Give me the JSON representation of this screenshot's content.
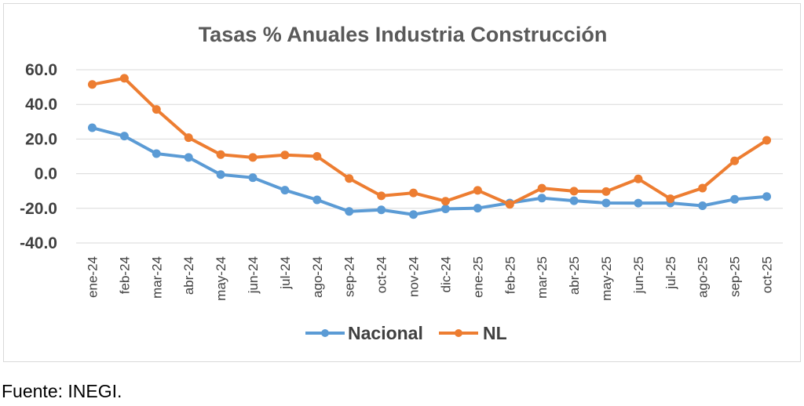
{
  "colors": {
    "nacional": "#5b9bd5",
    "nl": "#ed7d31",
    "grid": "#d9d9d9",
    "text": "#404040"
  },
  "source_note": "Fuente: INEGI.",
  "chart_data": {
    "type": "line",
    "title": "Tasas % Anuales Industria Construcción",
    "categories": [
      "ene-24",
      "feb-24",
      "mar-24",
      "abr-24",
      "may-24",
      "jun-24",
      "jul-24",
      "ago-24",
      "sep-24",
      "oct-24",
      "nov-24",
      "dic-24",
      "ene-25",
      "feb-25",
      "mar-25",
      "abr-25",
      "may-25",
      "jun-25",
      "jul-25",
      "ago-25",
      "sep-25",
      "oct-25"
    ],
    "series": [
      {
        "name": "Nacional",
        "color": "#5b9bd5",
        "values": [
          26.5,
          21.7,
          11.6,
          9.4,
          -0.5,
          -2.3,
          -9.5,
          -15.1,
          -21.8,
          -20.9,
          -23.6,
          -20.3,
          -19.9,
          -16.9,
          -14.1,
          -15.6,
          -16.9,
          -17.0,
          -16.9,
          -18.5,
          -14.8,
          -13.2
        ]
      },
      {
        "name": "NL",
        "color": "#ed7d31",
        "values": [
          51.5,
          55.1,
          37.1,
          20.8,
          11.0,
          9.4,
          10.8,
          10.0,
          -2.8,
          -12.8,
          -11.1,
          -15.9,
          -9.6,
          -17.7,
          -8.4,
          -10.1,
          -10.3,
          -3.0,
          -14.5,
          -8.3,
          7.4,
          19.3
        ]
      }
    ],
    "yticks": [
      "60.0",
      "40.0",
      "20.0",
      "0.0",
      "-20.0",
      "-40.0"
    ],
    "ylim": [
      -40,
      60
    ],
    "grid": true,
    "legend_position": "bottom"
  }
}
